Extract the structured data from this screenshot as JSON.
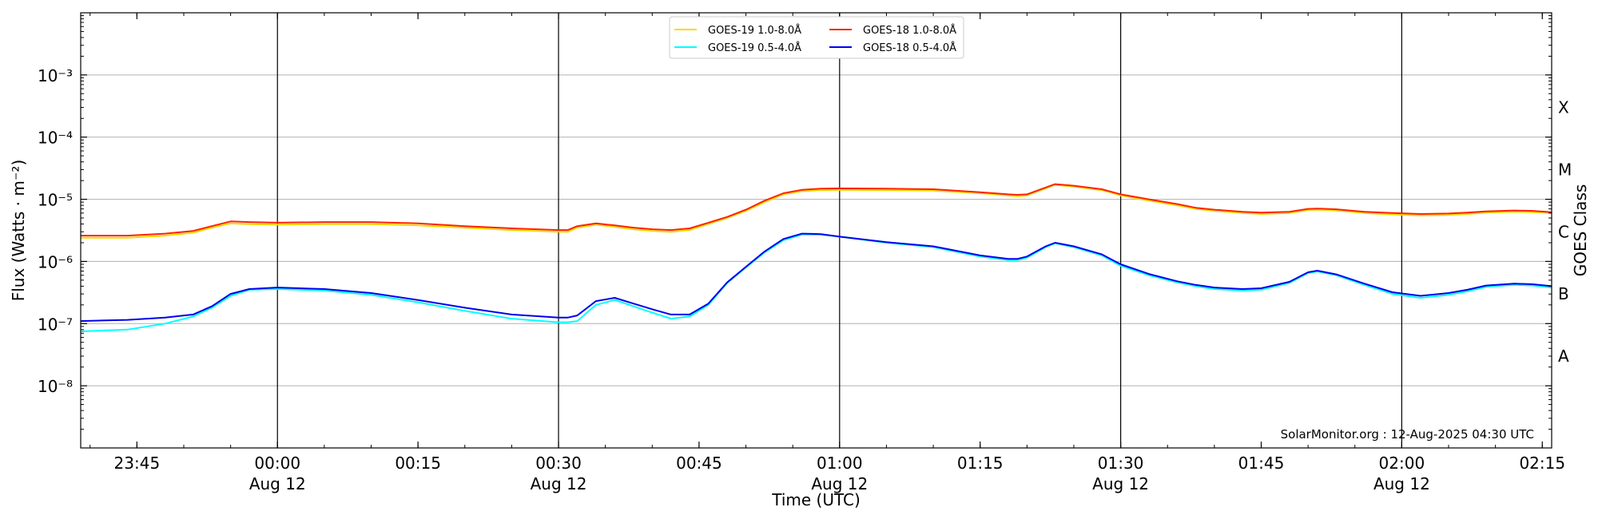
{
  "chart_data": {
    "type": "line",
    "title": "",
    "xlabel": "Time (UTC)",
    "ylabel": "Flux (Watts · m⁻²)",
    "y2label": "GOES Class",
    "yscale": "log",
    "xlim": [
      "2025-08-11 23:39",
      "2025-08-12 02:16"
    ],
    "ylim": [
      1e-09,
      0.01
    ],
    "y_ticks": [
      {
        "value": 1e-08,
        "label": "10⁻⁸"
      },
      {
        "value": 1e-07,
        "label": "10⁻⁷"
      },
      {
        "value": 1e-06,
        "label": "10⁻⁶"
      },
      {
        "value": 1e-05,
        "label": "10⁻⁵"
      },
      {
        "value": 0.0001,
        "label": "10⁻⁴"
      },
      {
        "value": 0.001,
        "label": "10⁻³"
      }
    ],
    "x_ticks": [
      {
        "time": "2025-08-11 23:45",
        "label": "23:45",
        "sublabel": ""
      },
      {
        "time": "2025-08-12 00:00",
        "label": "00:00",
        "sublabel": "Aug 12"
      },
      {
        "time": "2025-08-12 00:15",
        "label": "00:15",
        "sublabel": ""
      },
      {
        "time": "2025-08-12 00:30",
        "label": "00:30",
        "sublabel": "Aug 12"
      },
      {
        "time": "2025-08-12 00:45",
        "label": "00:45",
        "sublabel": ""
      },
      {
        "time": "2025-08-12 01:00",
        "label": "01:00",
        "sublabel": "Aug 12"
      },
      {
        "time": "2025-08-12 01:15",
        "label": "01:15",
        "sublabel": ""
      },
      {
        "time": "2025-08-12 01:30",
        "label": "01:30",
        "sublabel": "Aug 12"
      },
      {
        "time": "2025-08-12 01:45",
        "label": "01:45",
        "sublabel": ""
      },
      {
        "time": "2025-08-12 02:00",
        "label": "02:00",
        "sublabel": "Aug 12"
      },
      {
        "time": "2025-08-12 02:15",
        "label": "02:15",
        "sublabel": ""
      }
    ],
    "vlines": [
      "2025-08-12 00:00",
      "2025-08-12 00:30",
      "2025-08-12 01:00",
      "2025-08-12 01:30",
      "2025-08-12 02:00"
    ],
    "goes_classes": [
      {
        "label": "A",
        "value": 3e-08
      },
      {
        "label": "B",
        "value": 3e-07
      },
      {
        "label": "C",
        "value": 3e-06
      },
      {
        "label": "M",
        "value": 3e-05
      },
      {
        "label": "X",
        "value": 0.0003
      }
    ],
    "grid": "horizontal",
    "legend_position": "top-center",
    "x": [
      "2025-08-11 23:39",
      "2025-08-11 23:44",
      "2025-08-11 23:48",
      "2025-08-11 23:51",
      "2025-08-11 23:53",
      "2025-08-11 23:55",
      "2025-08-11 23:57",
      "2025-08-12 00:00",
      "2025-08-12 00:05",
      "2025-08-12 00:10",
      "2025-08-12 00:15",
      "2025-08-12 00:20",
      "2025-08-12 00:25",
      "2025-08-12 00:30",
      "2025-08-12 00:31",
      "2025-08-12 00:32",
      "2025-08-12 00:34",
      "2025-08-12 00:36",
      "2025-08-12 00:38",
      "2025-08-12 00:40",
      "2025-08-12 00:42",
      "2025-08-12 00:44",
      "2025-08-12 00:46",
      "2025-08-12 00:48",
      "2025-08-12 00:50",
      "2025-08-12 00:52",
      "2025-08-12 00:54",
      "2025-08-12 00:56",
      "2025-08-12 00:58",
      "2025-08-12 01:00",
      "2025-08-12 01:05",
      "2025-08-12 01:10",
      "2025-08-12 01:15",
      "2025-08-12 01:18",
      "2025-08-12 01:19",
      "2025-08-12 01:20",
      "2025-08-12 01:22",
      "2025-08-12 01:23",
      "2025-08-12 01:25",
      "2025-08-12 01:28",
      "2025-08-12 01:30",
      "2025-08-12 01:33",
      "2025-08-12 01:36",
      "2025-08-12 01:38",
      "2025-08-12 01:40",
      "2025-08-12 01:43",
      "2025-08-12 01:45",
      "2025-08-12 01:48",
      "2025-08-12 01:50",
      "2025-08-12 01:51",
      "2025-08-12 01:53",
      "2025-08-12 01:56",
      "2025-08-12 01:59",
      "2025-08-12 02:02",
      "2025-08-12 02:05",
      "2025-08-12 02:07",
      "2025-08-12 02:09",
      "2025-08-12 02:12",
      "2025-08-12 02:14",
      "2025-08-12 02:16"
    ],
    "series": [
      {
        "name": "GOES-19 1.0-8.0Å",
        "color": "#ffd700",
        "values": [
          2.4e-06,
          2.4e-06,
          2.6e-06,
          2.9e-06,
          3.5e-06,
          4.1e-06,
          4e-06,
          3.9e-06,
          4e-06,
          4e-06,
          3.8e-06,
          3.5e-06,
          3.2e-06,
          3e-06,
          3e-06,
          3.5e-06,
          3.9e-06,
          3.6e-06,
          3.3e-06,
          3.1e-06,
          3e-06,
          3.2e-06,
          4e-06,
          5e-06,
          6.5e-06,
          9e-06,
          1.2e-05,
          1.35e-05,
          1.4e-05,
          1.42e-05,
          1.4e-05,
          1.38e-05,
          1.25e-05,
          1.15e-05,
          1.12e-05,
          1.15e-05,
          1.5e-05,
          1.7e-05,
          1.6e-05,
          1.4e-05,
          1.15e-05,
          9.5e-06,
          8e-06,
          7e-06,
          6.5e-06,
          6e-06,
          5.8e-06,
          6e-06,
          6.7e-06,
          6.8e-06,
          6.6e-06,
          6e-06,
          5.7e-06,
          5.5e-06,
          5.6e-06,
          5.8e-06,
          6.1e-06,
          6.3e-06,
          6.2e-06,
          6e-06
        ]
      },
      {
        "name": "GOES-18 1.0-8.0Å",
        "color": "#ff2200",
        "values": [
          2.6e-06,
          2.6e-06,
          2.8e-06,
          3.1e-06,
          3.7e-06,
          4.4e-06,
          4.3e-06,
          4.2e-06,
          4.3e-06,
          4.3e-06,
          4.1e-06,
          3.7e-06,
          3.4e-06,
          3.2e-06,
          3.2e-06,
          3.7e-06,
          4.1e-06,
          3.8e-06,
          3.5e-06,
          3.3e-06,
          3.2e-06,
          3.4e-06,
          4.2e-06,
          5.2e-06,
          6.8e-06,
          9.5e-06,
          1.25e-05,
          1.42e-05,
          1.48e-05,
          1.5e-05,
          1.48e-05,
          1.45e-05,
          1.3e-05,
          1.2e-05,
          1.18e-05,
          1.2e-05,
          1.55e-05,
          1.75e-05,
          1.65e-05,
          1.45e-05,
          1.2e-05,
          1e-05,
          8.4e-06,
          7.3e-06,
          6.8e-06,
          6.3e-06,
          6.1e-06,
          6.3e-06,
          7e-06,
          7.1e-06,
          6.9e-06,
          6.3e-06,
          6e-06,
          5.8e-06,
          5.9e-06,
          6.1e-06,
          6.4e-06,
          6.6e-06,
          6.5e-06,
          6.2e-06
        ]
      },
      {
        "name": "GOES-19 0.5-4.0Å",
        "color": "#00ffff",
        "values": [
          7.5e-08,
          8e-08,
          1e-07,
          1.3e-07,
          1.8e-07,
          2.8e-07,
          3.5e-07,
          3.6e-07,
          3.4e-07,
          2.9e-07,
          2.2e-07,
          1.6e-07,
          1.2e-07,
          1.05e-07,
          1.05e-07,
          1.1e-07,
          2e-07,
          2.4e-07,
          1.9e-07,
          1.5e-07,
          1.2e-07,
          1.3e-07,
          2e-07,
          4.5e-07,
          8e-07,
          1.4e-06,
          2.2e-06,
          2.7e-06,
          2.7e-06,
          2.5e-06,
          2e-06,
          1.7e-06,
          1.2e-06,
          1.05e-06,
          1.05e-06,
          1.15e-06,
          1.7e-06,
          1.95e-06,
          1.7e-06,
          1.25e-06,
          8.5e-07,
          6e-07,
          4.6e-07,
          4e-07,
          3.6e-07,
          3.4e-07,
          3.5e-07,
          4.5e-07,
          6.5e-07,
          6.9e-07,
          6e-07,
          4.2e-07,
          3e-07,
          2.6e-07,
          2.9e-07,
          3.3e-07,
          3.9e-07,
          4.2e-07,
          4.1e-07,
          3.8e-07
        ]
      },
      {
        "name": "GOES-18 0.5-4.0Å",
        "color": "#0000ee",
        "values": [
          1.1e-07,
          1.15e-07,
          1.25e-07,
          1.4e-07,
          1.9e-07,
          3e-07,
          3.6e-07,
          3.8e-07,
          3.6e-07,
          3.1e-07,
          2.4e-07,
          1.8e-07,
          1.4e-07,
          1.25e-07,
          1.25e-07,
          1.35e-07,
          2.3e-07,
          2.6e-07,
          2.1e-07,
          1.7e-07,
          1.4e-07,
          1.4e-07,
          2.1e-07,
          4.6e-07,
          8.2e-07,
          1.45e-06,
          2.3e-06,
          2.8e-06,
          2.75e-06,
          2.5e-06,
          2.05e-06,
          1.75e-06,
          1.25e-06,
          1.1e-06,
          1.1e-06,
          1.2e-06,
          1.75e-06,
          2e-06,
          1.75e-06,
          1.3e-06,
          9e-07,
          6.3e-07,
          4.8e-07,
          4.2e-07,
          3.8e-07,
          3.6e-07,
          3.7e-07,
          4.7e-07,
          6.7e-07,
          7.1e-07,
          6.2e-07,
          4.4e-07,
          3.2e-07,
          2.8e-07,
          3.1e-07,
          3.5e-07,
          4.1e-07,
          4.4e-07,
          4.3e-07,
          4e-07
        ]
      }
    ],
    "legend_order": [
      0,
      2,
      1,
      3
    ]
  },
  "credit": "SolarMonitor.org : 12-Aug-2025 04:30 UTC"
}
